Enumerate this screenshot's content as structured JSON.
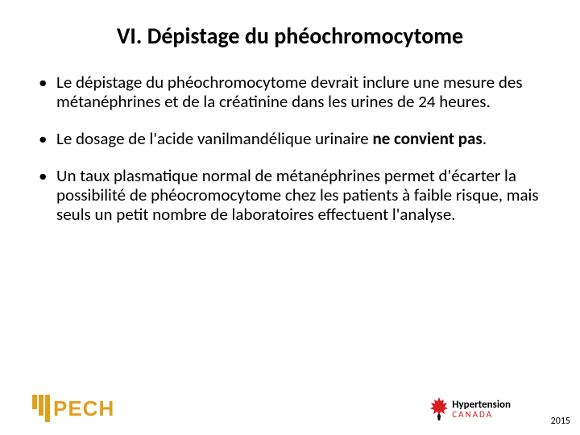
{
  "title": "VI. Dépistage du phéochromocytome",
  "bullets": [
    {
      "segments": [
        {
          "text": "Le dépistage du phéochromocytome devrait inclure une mesure des métanéphrines et de la créatinine dans les urines de 24 heures.",
          "bold": false
        }
      ]
    },
    {
      "segments": [
        {
          "text": "Le dosage de l'acide vanilmandélique urinaire ",
          "bold": false
        },
        {
          "text": "ne convient pas",
          "bold": true
        },
        {
          "text": ".",
          "bold": false
        }
      ]
    },
    {
      "segments": [
        {
          "text": "Un taux plasmatique normal de métanéphrines permet d'écarter la possibilité de phéocromocytome chez les patients à faible risque, mais seuls un petit nombre de laboratoires effectuent l'analyse.",
          "bold": false
        }
      ]
    }
  ],
  "footer": {
    "pech_label": "PECH",
    "hc_line1": "Hypertension",
    "hc_line2": "CANADA",
    "year": "2015"
  },
  "colors": {
    "pech": "#e0a01e",
    "hc_red": "#d32027",
    "text": "#000000",
    "bg": "#ffffff"
  },
  "typography": {
    "title_fontsize": 28,
    "bullet_fontsize": 21,
    "year_fontsize": 12,
    "font_family": "Calibri"
  }
}
